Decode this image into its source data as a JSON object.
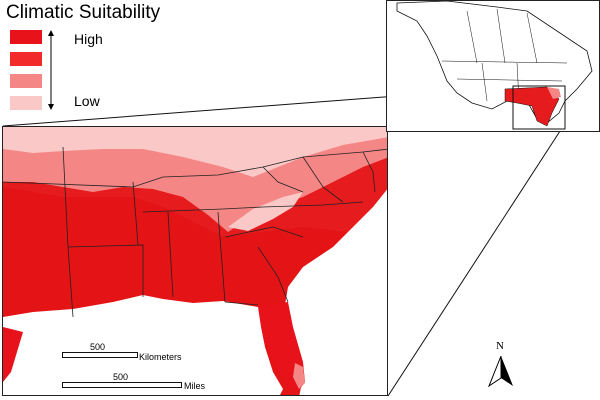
{
  "legend": {
    "title": "Climatic Suitability",
    "high_label": "High",
    "low_label": "Low",
    "classes": [
      "#e8121a",
      "#f22a2a",
      "#f58686",
      "#fbc8c8"
    ]
  },
  "scale": {
    "km_value": "500",
    "km_unit": "Kilometers",
    "mi_value": "500",
    "mi_unit": "Miles"
  },
  "north_arrow": {
    "label": "N"
  },
  "colors": {
    "high": "#e31a1c",
    "mid": "#ee2a2a",
    "low": "#f58a8a",
    "very_low": "#fbcaca",
    "water": "#ffffff",
    "border": "#222222"
  }
}
